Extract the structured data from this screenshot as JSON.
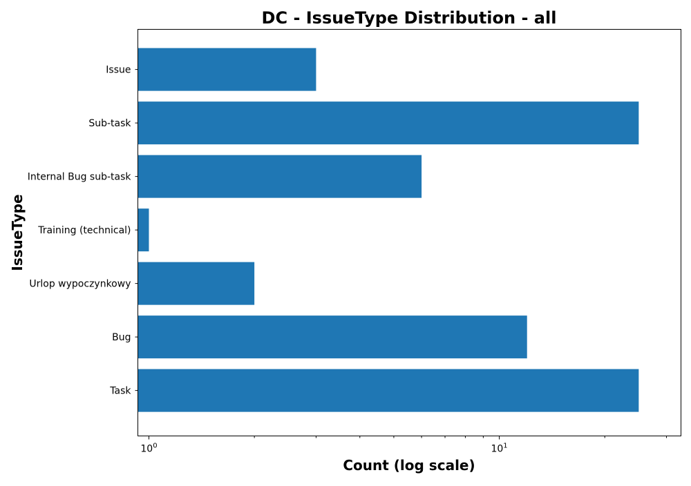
{
  "chart_data": {
    "type": "bar",
    "orientation": "horizontal",
    "title": "DC - IssueType Distribution - all",
    "xlabel": "Count (log scale)",
    "ylabel": "IssueType",
    "x_scale": "log",
    "xlim": [
      0.93,
      33
    ],
    "x_ticks": [
      {
        "value": 1,
        "base": "10",
        "exp": "0"
      },
      {
        "value": 10,
        "base": "10",
        "exp": "1"
      }
    ],
    "categories": [
      "Issue",
      "Sub-task",
      "Internal Bug sub-task",
      "Training (technical)",
      "Urlop wypoczynkowy",
      "Bug",
      "Task"
    ],
    "values": [
      3,
      25,
      6,
      1,
      2,
      12,
      25
    ],
    "grid": false,
    "bar_color": "#1f77b4"
  }
}
